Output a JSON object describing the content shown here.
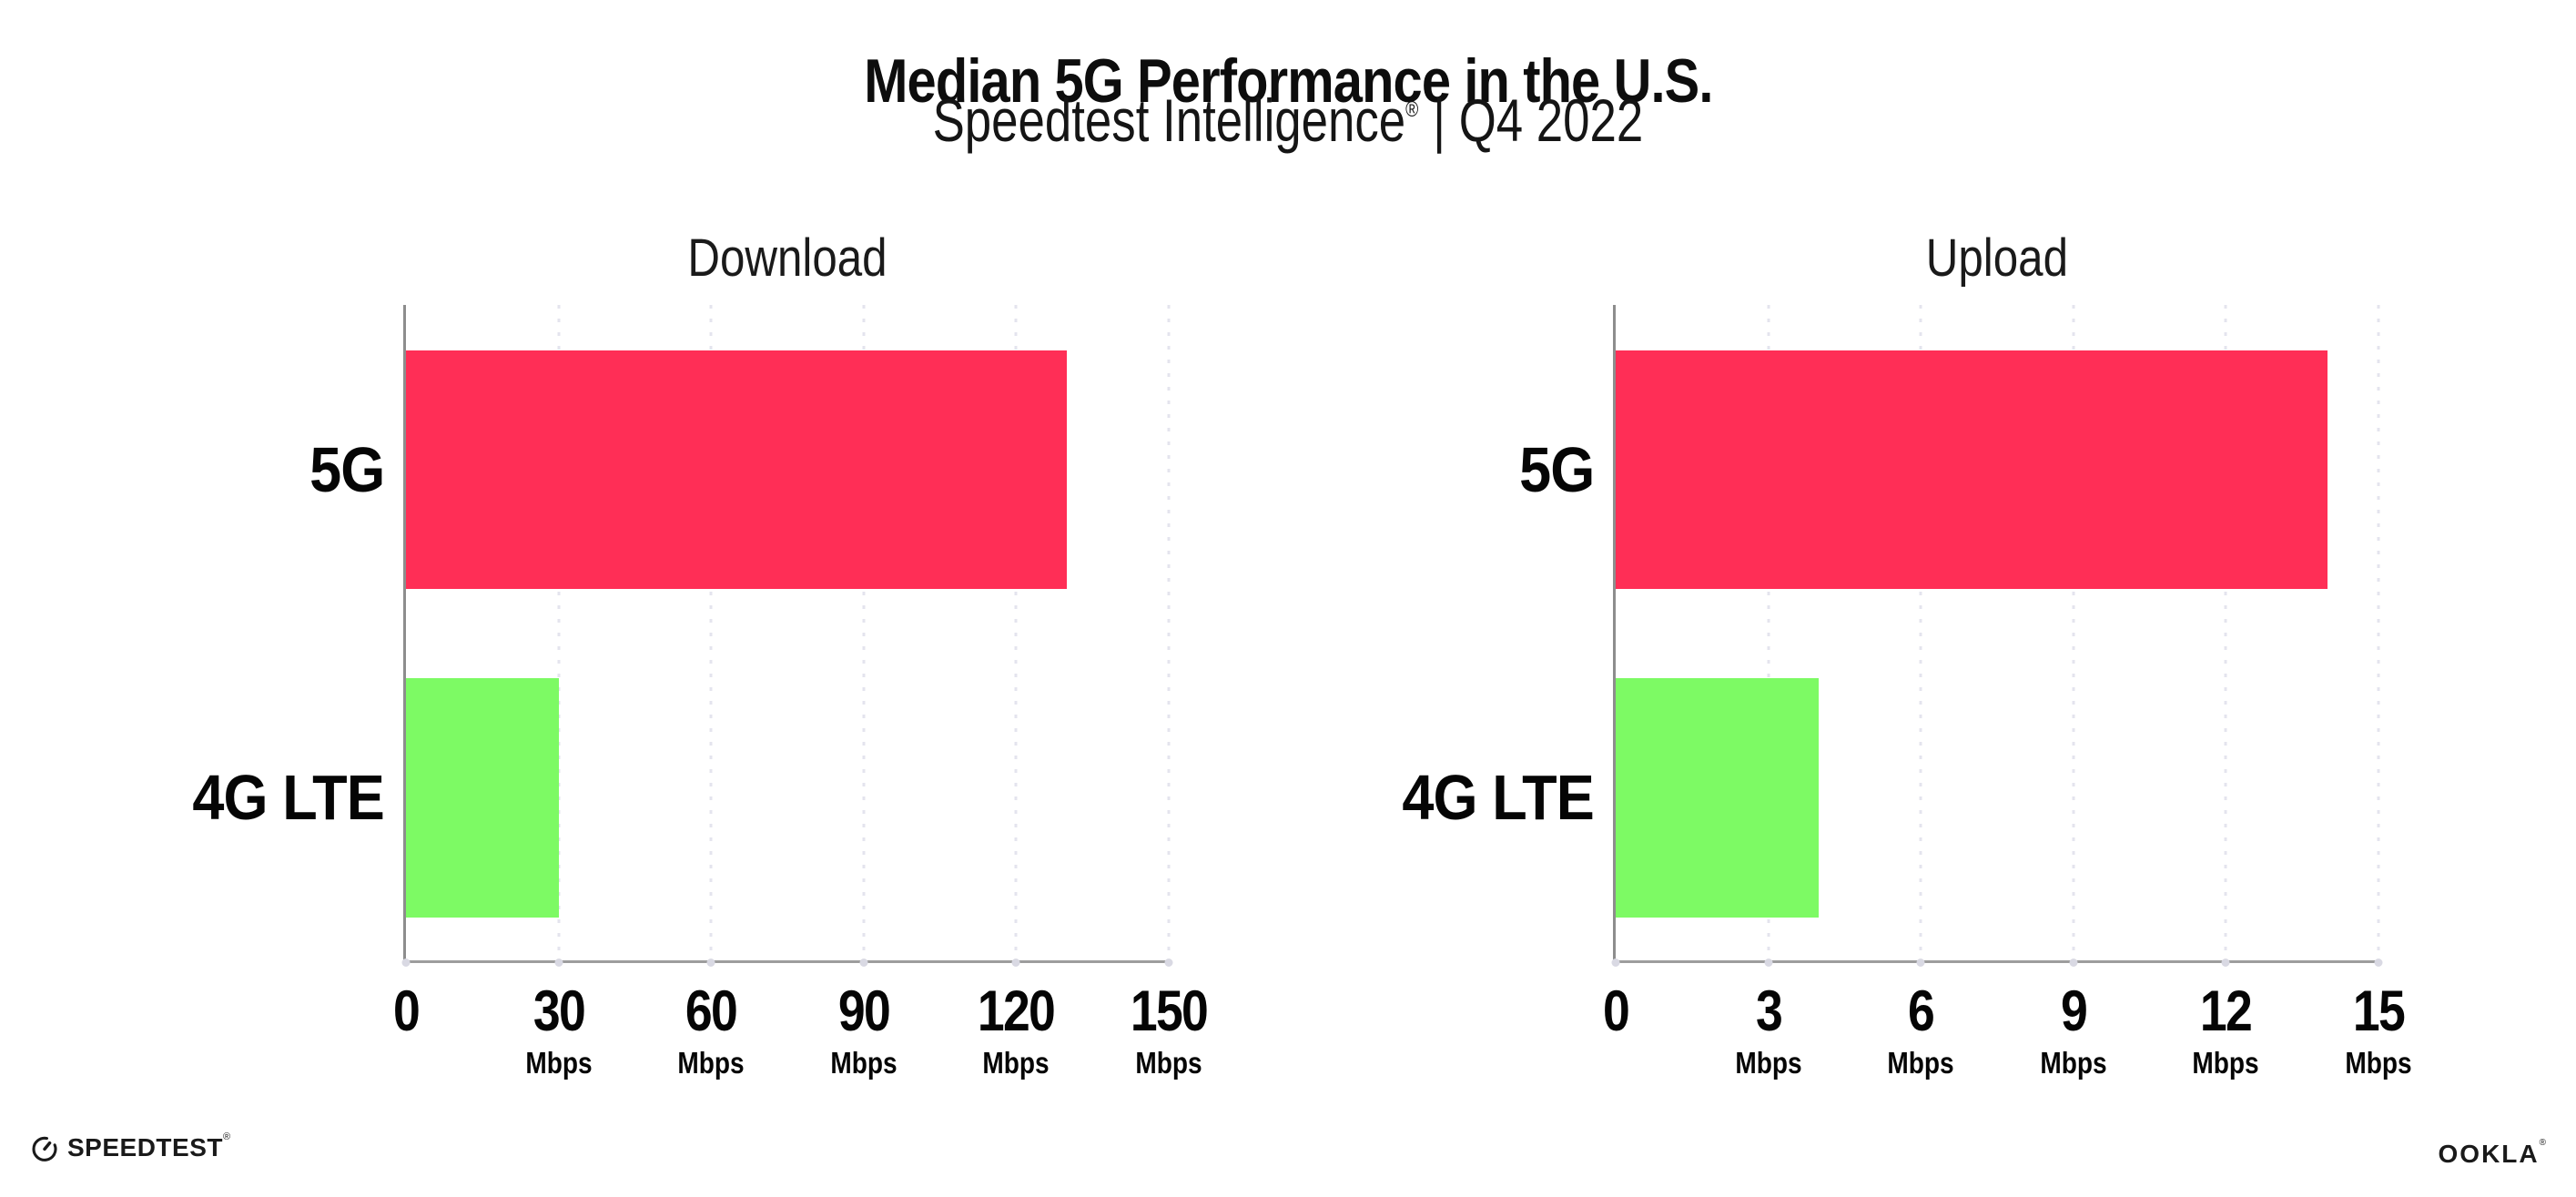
{
  "page": {
    "title": "Median 5G Performance in the U.S.",
    "subtitle_brand": "Speedtest Intelligence",
    "subtitle_reg": "®",
    "subtitle_rest": "| Q4 2022"
  },
  "colors": {
    "bar_5g": "#ff2e56",
    "bar_4g_lte": "#7dfa64",
    "gridline": "#e4e4ee",
    "axis_spine": "#8d8d8d",
    "axis_baseline": "#9d9d9d",
    "tick_dot": "#d9d9e3",
    "text": "#0d0d0d"
  },
  "chart_data": [
    {
      "type": "bar",
      "orientation": "horizontal",
      "title": "Download",
      "categories": [
        "5G",
        "4G LTE"
      ],
      "values": [
        130,
        30
      ],
      "unit": "Mbps",
      "xlim": [
        0,
        150
      ],
      "xticks": [
        0,
        30,
        60,
        90,
        120,
        150
      ],
      "bar_colors": [
        "#ff2e56",
        "#7dfa64"
      ],
      "grid": "vertical-dotted",
      "legend": "none"
    },
    {
      "type": "bar",
      "orientation": "horizontal",
      "title": "Upload",
      "categories": [
        "5G",
        "4G LTE"
      ],
      "values": [
        14,
        4
      ],
      "unit": "Mbps",
      "xlim": [
        0,
        15
      ],
      "xticks": [
        0,
        3,
        6,
        9,
        12,
        15
      ],
      "bar_colors": [
        "#ff2e56",
        "#7dfa64"
      ],
      "grid": "vertical-dotted",
      "legend": "none"
    }
  ],
  "footer": {
    "speedtest_wordmark": "SPEEDTEST",
    "speedtest_reg": "®",
    "ookla_wordmark": "OOKLA",
    "ookla_reg": "®"
  }
}
